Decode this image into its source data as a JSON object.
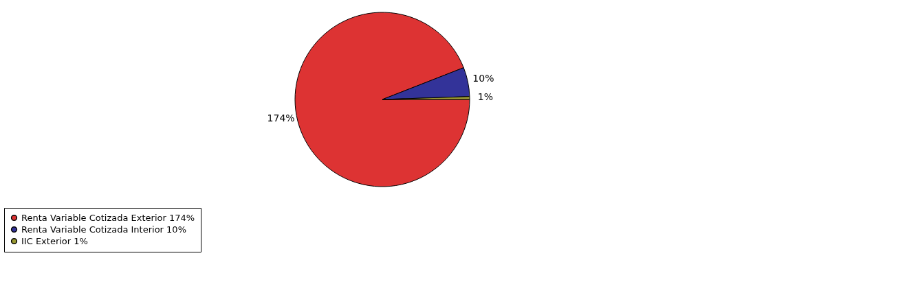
{
  "chart_data": {
    "type": "pie",
    "categories": [
      "Renta Variable Cotizada Exterior",
      "Renta Variable Cotizada Interior",
      "IIC Exterior"
    ],
    "values": [
      174,
      10,
      1
    ],
    "value_labels": [
      "174%",
      "10%",
      "1%"
    ],
    "colors": [
      "#dd3333",
      "#333399",
      "#999933"
    ],
    "legend": "bottom"
  }
}
